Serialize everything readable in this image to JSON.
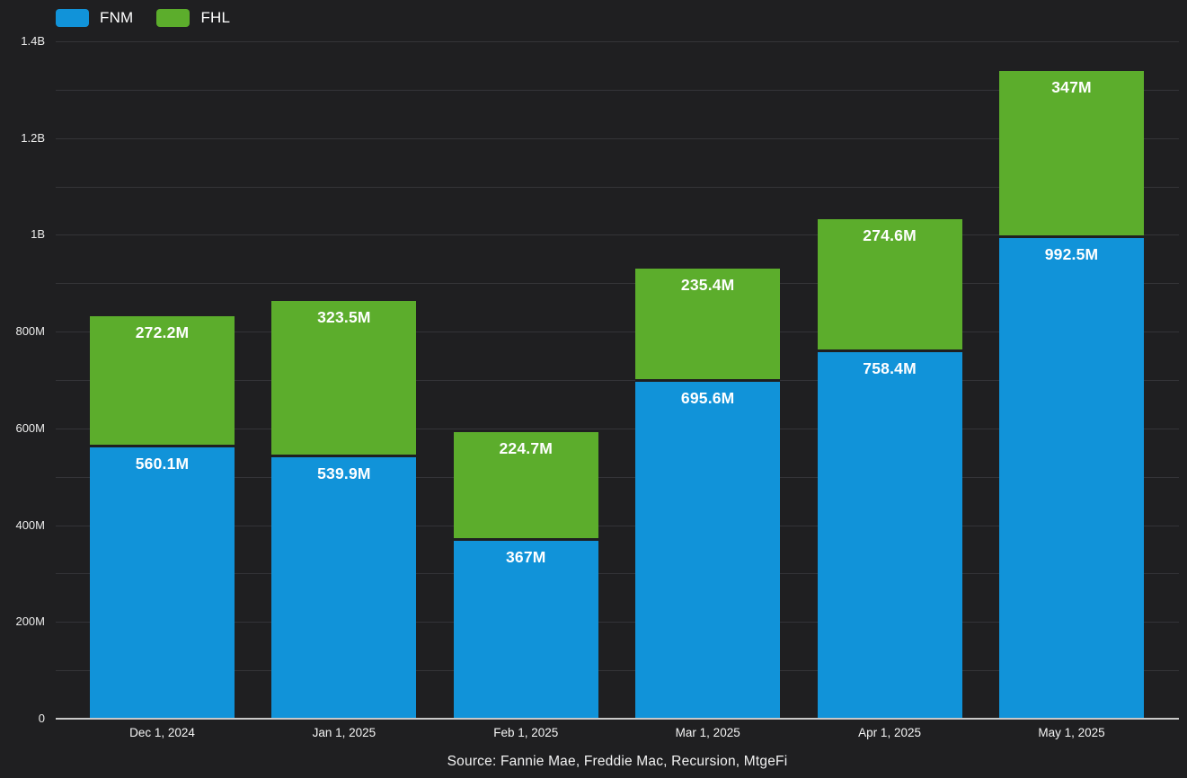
{
  "legend": {
    "items": [
      {
        "label": "FNM",
        "color": "#1193d9"
      },
      {
        "label": "FHL",
        "color": "#5cad2c"
      }
    ]
  },
  "source": "Source: Fannie Mae, Freddie Mac, Recursion, MtgeFi",
  "colors": {
    "background": "#1f1f21",
    "gridline": "#343438",
    "axis_baseline": "#c9c9c9",
    "fnm_blue": "#1193d9",
    "fhl_green": "#5cad2c",
    "label_text": "#ffffff"
  },
  "chart_data": {
    "type": "bar",
    "stacked": true,
    "title": "",
    "xlabel": "",
    "ylabel": "",
    "unit": "millions",
    "ylim": [
      0,
      1400
    ],
    "grid_step": 100,
    "legend_position": "top-left",
    "categories": [
      "Dec 1, 2024",
      "Jan 1, 2025",
      "Feb 1, 2025",
      "Mar 1, 2025",
      "Apr 1, 2025",
      "May 1, 2025"
    ],
    "series": [
      {
        "name": "FNM",
        "color": "#1193d9",
        "values": [
          560.1,
          539.9,
          367,
          695.6,
          758.4,
          992.5
        ],
        "labels": [
          "560.1M",
          "539.9M",
          "367M",
          "695.6M",
          "758.4M",
          "992.5M"
        ]
      },
      {
        "name": "FHL",
        "color": "#5cad2c",
        "values": [
          272.2,
          323.5,
          224.7,
          235.4,
          274.6,
          347
        ],
        "labels": [
          "272.2M",
          "323.5M",
          "224.7M",
          "235.4M",
          "274.6M",
          "347M"
        ]
      }
    ],
    "totals": [
      832.3,
      863.4,
      591.7,
      931.0,
      1033.0,
      1339.5
    ],
    "y_ticks": [
      {
        "value": 0,
        "label": "0"
      },
      {
        "value": 200,
        "label": "200M"
      },
      {
        "value": 400,
        "label": "400M"
      },
      {
        "value": 600,
        "label": "600M"
      },
      {
        "value": 800,
        "label": "800M"
      },
      {
        "value": 1000,
        "label": "1B"
      },
      {
        "value": 1200,
        "label": "1.2B"
      },
      {
        "value": 1400,
        "label": "1.4B"
      }
    ]
  }
}
